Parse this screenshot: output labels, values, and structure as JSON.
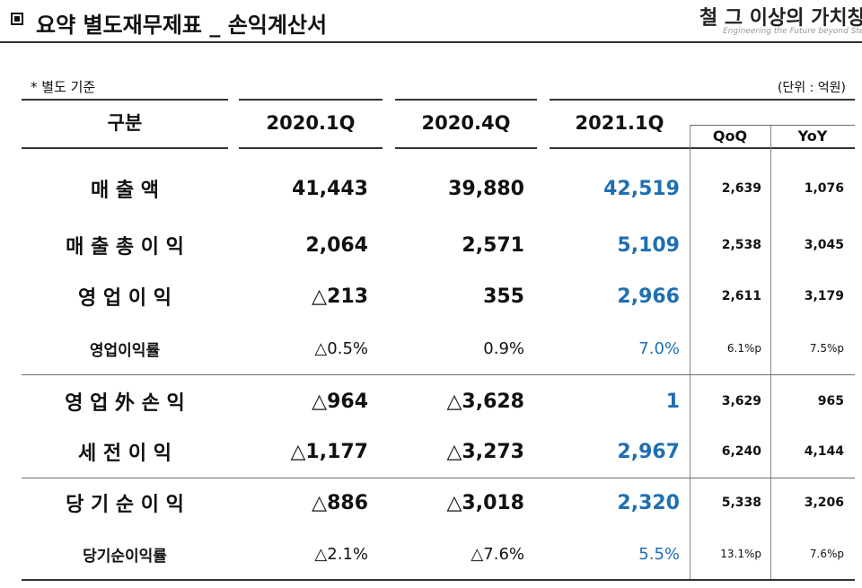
{
  "header": {
    "title": "요약 별도재무제표 _ 손익계산서",
    "logo_text": "철 그 이상의 가치창조",
    "logo_subtext": "Engineering the Future beyond Steel"
  },
  "note": "* 별도 기준",
  "unit": "(단위 : 억원)",
  "columns": {
    "category": "구분",
    "q1": "2020.1Q",
    "q2": "2020.4Q",
    "q3": "2021.1Q",
    "qoq": "QoQ",
    "yoy": "YoY"
  },
  "colors": {
    "highlight": "#1f6fb2",
    "text": "#111111",
    "rule": "#333333"
  },
  "rows": [
    {
      "label": "매   출   액",
      "v2020_1q": "41,443",
      "v2020_4q": "39,880",
      "v2021_1q": "42,519",
      "qoq": "2,639",
      "yoy": "1,076"
    },
    {
      "label": "매 출 총 이 익",
      "v2020_1q": "2,064",
      "v2020_4q": "2,571",
      "v2021_1q": "5,109",
      "qoq": "2,538",
      "yoy": "3,045"
    },
    {
      "label": "영  업  이  익",
      "v2020_1q": "△213",
      "v2020_4q": "355",
      "v2021_1q": "2,966",
      "qoq": "2,611",
      "yoy": "3,179"
    },
    {
      "label": "영업이익률",
      "v2020_1q": "△0.5%",
      "v2020_4q": "0.9%",
      "v2021_1q": "7.0%",
      "qoq": "6.1%p",
      "yoy": "7.5%p"
    },
    {
      "label": "영 업 外  손 익",
      "v2020_1q": "△964",
      "v2020_4q": "△3,628",
      "v2021_1q": "1",
      "qoq": "3,629",
      "yoy": "965"
    },
    {
      "label": "세  전  이  익",
      "v2020_1q": "△1,177",
      "v2020_4q": "△3,273",
      "v2021_1q": "2,967",
      "qoq": "6,240",
      "yoy": "4,144"
    },
    {
      "label": "당 기 순 이 익",
      "v2020_1q": "△886",
      "v2020_4q": "△3,018",
      "v2021_1q": "2,320",
      "qoq": "5,338",
      "yoy": "3,206"
    },
    {
      "label": "당기순이익률",
      "v2020_1q": "△2.1%",
      "v2020_4q": "△7.6%",
      "v2021_1q": "5.5%",
      "qoq": "13.1%p",
      "yoy": "7.6%p"
    }
  ]
}
